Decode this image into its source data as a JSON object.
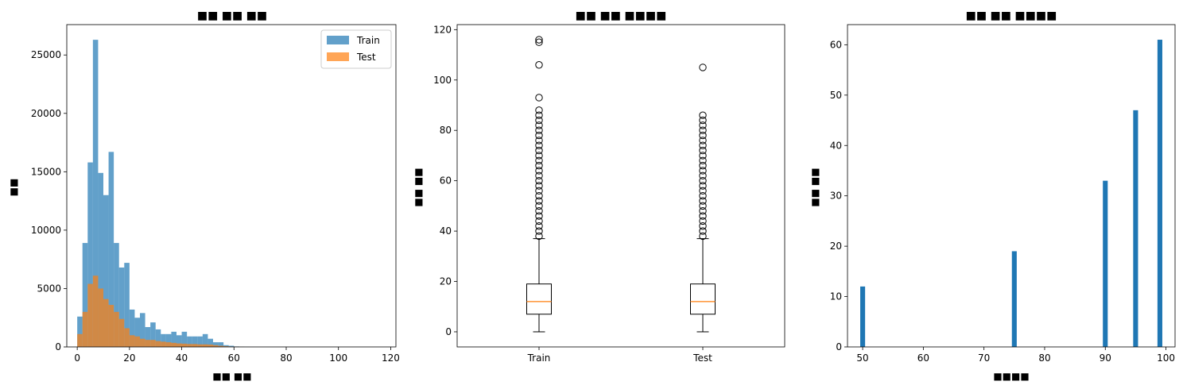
{
  "chart_data": [
    {
      "type": "histogram",
      "title": "■■ ■■ ■■",
      "xlabel": "■■ ■■",
      "ylabel": "■■",
      "xlim": [
        -4,
        122
      ],
      "ylim": [
        0,
        27600
      ],
      "xticks": [
        0,
        20,
        40,
        60,
        80,
        100,
        120
      ],
      "yticks": [
        0,
        5000,
        10000,
        15000,
        20000,
        25000
      ],
      "legend": "top-right",
      "bin_edges": [
        0,
        2,
        4,
        6,
        8,
        10,
        12,
        14,
        16,
        18,
        20,
        22,
        24,
        26,
        28,
        30,
        32,
        34,
        36,
        38,
        40,
        42,
        44,
        46,
        48,
        50,
        52,
        54,
        56,
        58,
        60,
        62,
        64,
        66,
        68,
        70,
        72,
        74,
        76,
        78,
        80
      ],
      "series": [
        {
          "name": "Train",
          "color": "#1f77b4",
          "opacity": 0.7,
          "values": [
            2600,
            8900,
            15800,
            26300,
            14900,
            13000,
            16700,
            8900,
            6800,
            7200,
            3200,
            2500,
            2900,
            1700,
            2100,
            1500,
            1100,
            1100,
            1300,
            1000,
            1300,
            900,
            900,
            900,
            1100,
            700,
            400,
            400,
            150,
            100,
            40,
            20,
            10,
            5,
            3,
            2,
            1,
            0,
            0,
            0
          ]
        },
        {
          "name": "Test",
          "color": "#ff7f0e",
          "opacity": 0.7,
          "values": [
            1100,
            3000,
            5400,
            6100,
            5000,
            4100,
            3600,
            3000,
            2400,
            1600,
            1000,
            900,
            700,
            600,
            600,
            500,
            450,
            400,
            350,
            300,
            280,
            250,
            250,
            220,
            220,
            200,
            150,
            100,
            60,
            30,
            15,
            8,
            4,
            2,
            1,
            0,
            0,
            0,
            0,
            0
          ]
        }
      ]
    },
    {
      "type": "boxplot",
      "title": "■■ ■■ ■■■■",
      "xlabel": "",
      "ylabel": "■■ ■■",
      "ylim": [
        -6,
        122
      ],
      "yticks": [
        0,
        20,
        40,
        60,
        80,
        100,
        120
      ],
      "categories": [
        "Train",
        "Test"
      ],
      "boxes": [
        {
          "name": "Train",
          "min": 0,
          "q1": 7,
          "median": 12,
          "q3": 19,
          "max": 37,
          "outliers": [
            38,
            40,
            42,
            44,
            46,
            48,
            50,
            52,
            54,
            56,
            58,
            60,
            62,
            64,
            66,
            68,
            70,
            72,
            74,
            76,
            78,
            80,
            82,
            84,
            86,
            88,
            93,
            106,
            115,
            116
          ]
        },
        {
          "name": "Test",
          "min": 0,
          "q1": 7,
          "median": 12,
          "q3": 19,
          "max": 37,
          "outliers": [
            38,
            40,
            42,
            44,
            46,
            48,
            50,
            52,
            54,
            56,
            58,
            60,
            62,
            64,
            66,
            68,
            70,
            72,
            74,
            76,
            78,
            80,
            82,
            84,
            86,
            105
          ]
        }
      ]
    },
    {
      "type": "bar",
      "title": "■■ ■■ ■■■■",
      "xlabel": "■■■■",
      "ylabel": "■■ ■■",
      "xlim": [
        47.5,
        101.5
      ],
      "ylim": [
        0,
        64
      ],
      "xticks": [
        50,
        60,
        70,
        80,
        90,
        100
      ],
      "yticks": [
        0,
        10,
        20,
        30,
        40,
        50,
        60
      ],
      "color": "#1f77b4",
      "x": [
        50,
        75,
        90,
        95,
        99
      ],
      "values": [
        12,
        19,
        33,
        47,
        61
      ]
    }
  ]
}
